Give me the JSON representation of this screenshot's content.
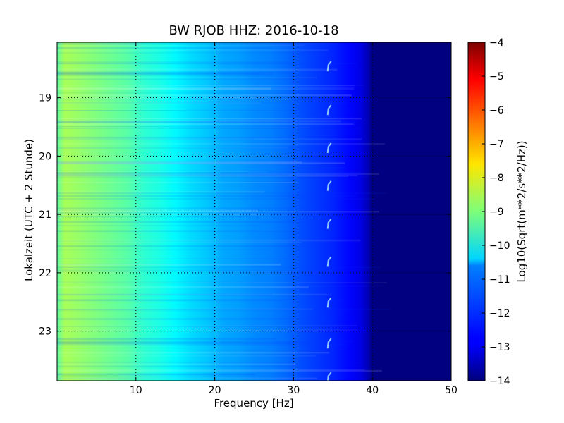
{
  "chart_data": {
    "type": "heatmap",
    "title": "BW RJOB HHZ: 2016-10-18",
    "xlabel": "Frequency [Hz]",
    "ylabel": "Lokalzeit (UTC + 2 Stunde)",
    "xlim": [
      0,
      50
    ],
    "ylim": [
      23.85,
      18.05
    ],
    "y_inverted": true,
    "grid": true,
    "x_ticks": [
      10,
      20,
      30,
      40,
      50
    ],
    "y_ticks": [
      19,
      20,
      21,
      22,
      23
    ],
    "colorbar": {
      "label": "Log10(Sqrt(m**2/s**2/Hz))",
      "colormap": "jet",
      "range": [
        -14,
        -4
      ],
      "ticks": [
        -4,
        -5,
        -6,
        -7,
        -8,
        -9,
        -10,
        -11,
        -12,
        -13,
        -14
      ]
    },
    "frequency_profile": {
      "frequency_hz": [
        0,
        1,
        3,
        6,
        9,
        11,
        13,
        15,
        17,
        19,
        21,
        23,
        25,
        27,
        29,
        31,
        33,
        35,
        37,
        38.5,
        39.5,
        40,
        50
      ],
      "log10_psd": [
        -9.3,
        -8.6,
        -8.8,
        -9.1,
        -9.4,
        -9.8,
        -10.0,
        -10.3,
        -10.6,
        -10.8,
        -11.1,
        -11.2,
        -11.4,
        -11.5,
        -11.7,
        -12.0,
        -12.2,
        -12.4,
        -12.7,
        -13.0,
        -13.5,
        -14,
        -14
      ]
    },
    "line_artifacts": {
      "frequency_hz": [
        34.5
      ],
      "times": [
        18.45,
        19.2,
        19.85,
        20.5,
        21.15,
        21.8,
        22.5,
        23.2,
        23.78
      ]
    }
  }
}
